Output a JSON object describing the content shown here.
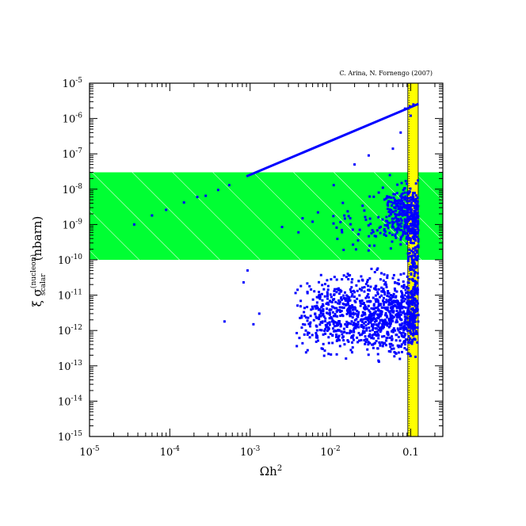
{
  "chart_data": {
    "type": "scatter",
    "credit": "C. Arina, N. Fornengo (2007)",
    "xlabel": {
      "base": "Ωh",
      "sup": "2"
    },
    "ylabel": {
      "prefix": "ξ σ",
      "sup": "(nucleon)",
      "sub": "scalar",
      "units": "(nbarn)"
    },
    "x_scale": "log",
    "y_scale": "log",
    "xlim_exp": [
      -5,
      -0.6
    ],
    "ylim_exp": [
      -15,
      -5
    ],
    "x_tick_labels": [
      {
        "exp": -5,
        "base": "10",
        "sup": "-5"
      },
      {
        "exp": -4,
        "base": "10",
        "sup": "-4"
      },
      {
        "exp": -3,
        "base": "10",
        "sup": "-3"
      },
      {
        "exp": -2,
        "base": "10",
        "sup": "-2"
      },
      {
        "exp": -1,
        "base": "0.1",
        "sup": ""
      }
    ],
    "y_tick_labels": [
      {
        "exp": -5,
        "sup": "-5"
      },
      {
        "exp": -6,
        "sup": "-6"
      },
      {
        "exp": -7,
        "sup": "-7"
      },
      {
        "exp": -8,
        "sup": "-8"
      },
      {
        "exp": -9,
        "sup": "-9"
      },
      {
        "exp": -10,
        "sup": "-10"
      },
      {
        "exp": -11,
        "sup": "-11"
      },
      {
        "exp": -12,
        "sup": "-12"
      },
      {
        "exp": -13,
        "sup": "-13"
      },
      {
        "exp": -14,
        "sup": "-14"
      },
      {
        "exp": -15,
        "sup": "-15"
      }
    ],
    "excluded_band": {
      "y_min": 1e-10,
      "y_max": 3e-08,
      "color": "#00ff33",
      "hatch_color": "#ffffff"
    },
    "relic_band": {
      "x_min": 0.092,
      "x_max": 0.124,
      "color": "#ffff00"
    },
    "upper_line": {
      "points": [
        [
          0.0009,
          2.3e-08
        ],
        [
          0.125,
          2.6e-06
        ]
      ],
      "color": "#0000ff"
    },
    "marker_color": "#0000ff",
    "series": [
      {
        "values": [
          [
            3.6e-05,
            1e-09
          ],
          [
            6e-05,
            1.8e-09
          ],
          [
            9e-05,
            2.6e-09
          ],
          [
            0.00015,
            4.2e-09
          ],
          [
            0.00022,
            6e-09
          ],
          [
            0.00028,
            6.5e-09
          ],
          [
            0.0004,
            9.5e-09
          ],
          [
            0.00055,
            1.3e-08
          ],
          [
            0.00048,
            1.8e-12
          ],
          [
            0.00083,
            2.3e-11
          ],
          [
            0.00093,
            5e-11
          ],
          [
            0.0011,
            1.5e-12
          ],
          [
            0.0013,
            3e-12
          ],
          [
            0.0025,
            8.5e-10
          ],
          [
            0.004,
            6e-10
          ],
          [
            0.0045,
            1.5e-09
          ],
          [
            0.006,
            1.2e-09
          ],
          [
            0.007,
            2.2e-09
          ],
          [
            0.011,
            1.3e-08
          ],
          [
            0.02,
            5e-08
          ],
          [
            0.03,
            9e-08
          ],
          [
            0.04,
            8e-09
          ],
          [
            0.045,
            1.1e-08
          ],
          [
            0.055,
            2.5e-08
          ],
          [
            0.075,
            4e-07
          ],
          [
            0.085,
            1.9e-06
          ],
          [
            0.098,
            2.2e-06
          ],
          [
            0.1,
            1.2e-06
          ],
          [
            0.108,
            2.5e-06
          ],
          [
            0.06,
            1.4e-07
          ]
        ]
      }
    ],
    "cloud_regions": [
      {
        "x_range": [
          0.0035,
          0.12
        ],
        "y_range": [
          8e-14,
          9e-11
        ],
        "count": 1100
      },
      {
        "x_range": [
          0.045,
          0.125
        ],
        "y_range": [
          1e-10,
          3e-08
        ],
        "count": 380
      },
      {
        "x_range": [
          0.01,
          0.045
        ],
        "y_range": [
          1e-10,
          1e-08
        ],
        "count": 45
      },
      {
        "x_range": [
          0.09,
          0.125
        ],
        "y_range": [
          8e-14,
          3e-08
        ],
        "count": 160
      }
    ]
  }
}
